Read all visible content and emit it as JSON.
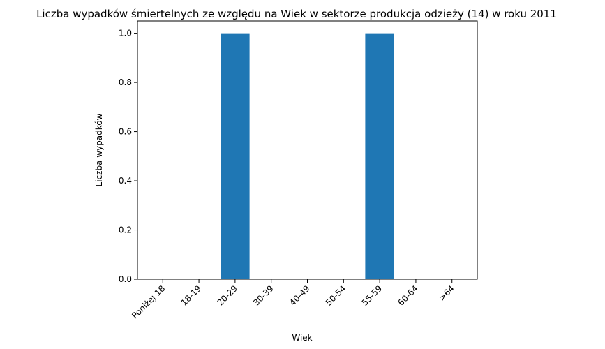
{
  "chart_data": {
    "type": "bar",
    "title": "Liczba wypadków śmiertelnych ze względu na Wiek w sektorze produkcja odzieży  (14)   w roku 2011",
    "xlabel": "Wiek",
    "ylabel": "Liczba wypadków",
    "categories": [
      "Poniżej 18",
      "18-19",
      "20-29",
      "30-39",
      "40-49",
      "50-54",
      "55-59",
      "60-64",
      ">64"
    ],
    "values": [
      0,
      0,
      1,
      0,
      0,
      0,
      1,
      0,
      0
    ],
    "ylim": [
      0,
      1.05
    ],
    "yticks": [
      "0.0",
      "0.2",
      "0.4",
      "0.6",
      "0.8",
      "1.0"
    ],
    "bar_color": "#1f77b4",
    "grid": false
  }
}
